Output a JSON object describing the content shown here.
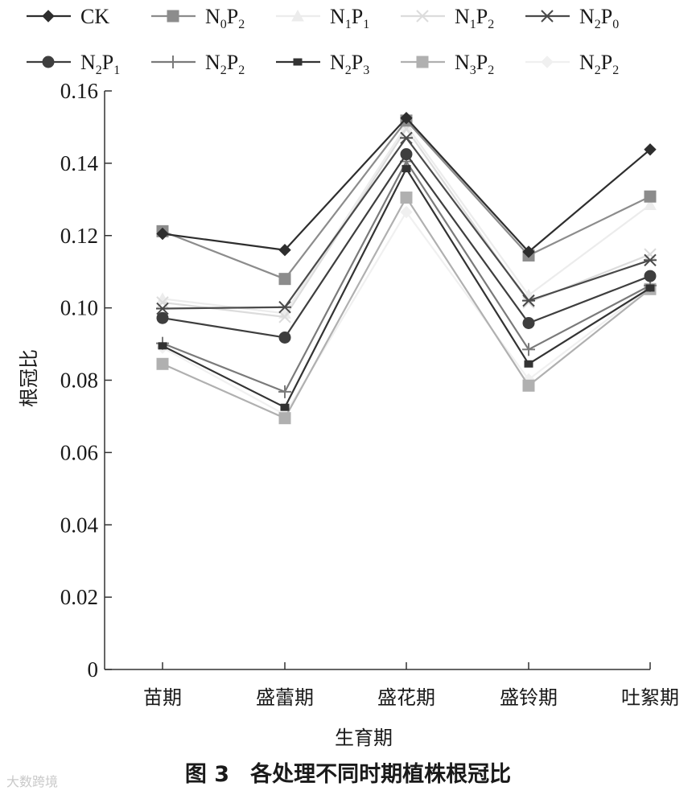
{
  "chart_data": {
    "type": "line",
    "title": "",
    "xlabel": "生育期",
    "ylabel": "根冠比",
    "categories": [
      "苗期",
      "盛蕾期",
      "盛花期",
      "盛铃期",
      "吐絮期"
    ],
    "ylim": [
      0,
      0.16
    ],
    "yticks": [
      "0",
      "0.02",
      "0.04",
      "0.06",
      "0.08",
      "0.10",
      "0.12",
      "0.14",
      "0.16"
    ],
    "grid": false,
    "legend_position": "top",
    "series": [
      {
        "name": "CK",
        "name_parts": [
          "CK"
        ],
        "color": "#2e2e2e",
        "marker": "diamond",
        "values": [
          0.1205,
          0.116,
          0.1525,
          0.1155,
          0.1438
        ]
      },
      {
        "name": "N0P2",
        "name_parts": [
          "N",
          "0",
          "P",
          "2"
        ],
        "color": "#8c8c8c",
        "marker": "square",
        "values": [
          0.1212,
          0.108,
          0.1518,
          0.1145,
          0.1308
        ]
      },
      {
        "name": "N1P1",
        "name_parts": [
          "N",
          "1",
          "P",
          "1"
        ],
        "color": "#ececec",
        "marker": "triangle",
        "values": [
          0.1025,
          0.0985,
          0.1505,
          0.1035,
          0.1285
        ]
      },
      {
        "name": "N1P2",
        "name_parts": [
          "N",
          "1",
          "P",
          "2"
        ],
        "color": "#dcdcdc",
        "marker": "x",
        "values": [
          0.1015,
          0.0975,
          0.1495,
          0.1015,
          0.1148
        ]
      },
      {
        "name": "N2P0",
        "name_parts": [
          "N",
          "2",
          "P",
          "0"
        ],
        "color": "#4a4a4a",
        "marker": "star",
        "values": [
          0.0998,
          0.1002,
          0.147,
          0.102,
          0.1132
        ]
      },
      {
        "name": "N2P1",
        "name_parts": [
          "N",
          "2",
          "P",
          "1"
        ],
        "color": "#3e3e3e",
        "marker": "circle",
        "values": [
          0.0972,
          0.0918,
          0.1425,
          0.0958,
          0.1088
        ]
      },
      {
        "name": "N2P2",
        "name_parts": [
          "N",
          "2",
          "P",
          "2"
        ],
        "color": "#7a7a7a",
        "marker": "plus",
        "values": [
          0.0902,
          0.0768,
          0.1405,
          0.0885,
          0.1062
        ]
      },
      {
        "name": "N2P3",
        "name_parts": [
          "N",
          "2",
          "P",
          "3"
        ],
        "color": "#333333",
        "marker": "smallsquare",
        "values": [
          0.0895,
          0.0725,
          0.1385,
          0.0845,
          0.1055
        ]
      },
      {
        "name": "N3P2",
        "name_parts": [
          "N",
          "3",
          "P",
          "2"
        ],
        "color": "#b0b0b0",
        "marker": "square",
        "values": [
          0.0845,
          0.0695,
          0.1305,
          0.0785,
          0.1052
        ]
      },
      {
        "name": "N2P2",
        "name_parts": [
          "N",
          "2",
          "P",
          "2"
        ],
        "color": "#f0f0f0",
        "marker": "diamond",
        "values": [
          0.089,
          0.0705,
          0.1265,
          0.0802,
          0.1058
        ]
      }
    ]
  },
  "caption": {
    "number": "图 3",
    "text": "各处理不同时期植株根冠比"
  },
  "watermark": "大数跨境"
}
